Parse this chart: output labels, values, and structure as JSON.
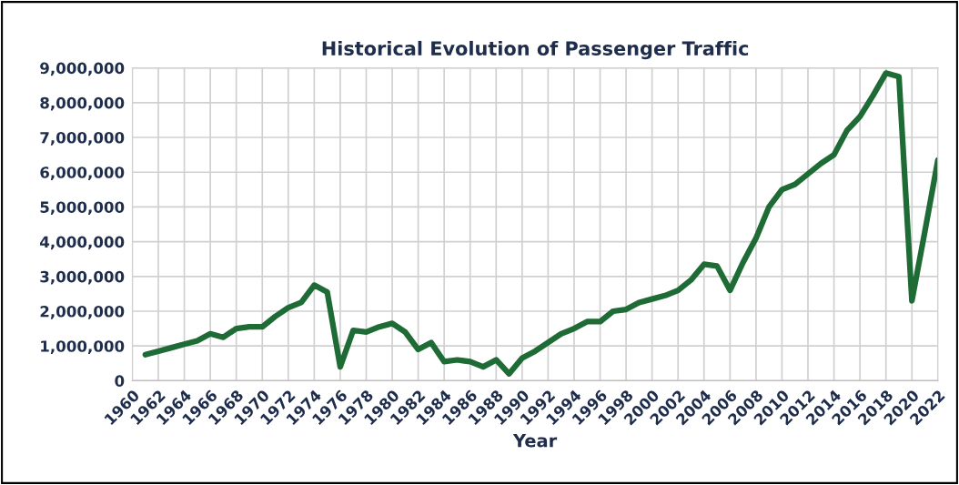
{
  "chart_data": {
    "type": "line",
    "title": "Historical Evolution of Passenger Traffic",
    "xlabel": "Year",
    "x": [
      1961,
      1962,
      1963,
      1964,
      1965,
      1966,
      1967,
      1968,
      1969,
      1970,
      1971,
      1972,
      1973,
      1974,
      1975,
      1976,
      1977,
      1978,
      1979,
      1980,
      1981,
      1982,
      1983,
      1984,
      1985,
      1986,
      1987,
      1988,
      1989,
      1990,
      1991,
      1992,
      1993,
      1994,
      1995,
      1996,
      1997,
      1998,
      1999,
      2000,
      2001,
      2002,
      2003,
      2004,
      2005,
      2006,
      2007,
      2008,
      2009,
      2010,
      2011,
      2012,
      2013,
      2014,
      2015,
      2016,
      2017,
      2018,
      2019,
      2020,
      2021,
      2022
    ],
    "series": [
      {
        "color": "#1e6b35",
        "values": [
          750000,
          850000,
          950000,
          1050000,
          1150000,
          1350000,
          1250000,
          1500000,
          1550000,
          1550000,
          1850000,
          2100000,
          2250000,
          2750000,
          2550000,
          400000,
          1450000,
          1400000,
          1550000,
          1650000,
          1400000,
          900000,
          1100000,
          550000,
          600000,
          550000,
          400000,
          600000,
          200000,
          650000,
          850000,
          1100000,
          1350000,
          1500000,
          1700000,
          1700000,
          2000000,
          2050000,
          2250000,
          2350000,
          2450000,
          2600000,
          2900000,
          3350000,
          3300000,
          2600000,
          3400000,
          4100000,
          5000000,
          5500000,
          5650000,
          5950000,
          6250000,
          6500000,
          7200000,
          7600000,
          8200000,
          8850000,
          8750000,
          2300000,
          4300000,
          6350000
        ]
      }
    ],
    "xlim": [
      1960,
      2022
    ],
    "xticks": [
      1960,
      1962,
      1964,
      1966,
      1968,
      1970,
      1972,
      1974,
      1976,
      1978,
      1980,
      1982,
      1984,
      1986,
      1988,
      1990,
      1992,
      1994,
      1996,
      1998,
      2000,
      2002,
      2004,
      2006,
      2008,
      2010,
      2012,
      2014,
      2016,
      2018,
      2020,
      2022
    ],
    "ylim": [
      0,
      9000000
    ],
    "yticks": [
      {
        "value": 0,
        "label": "0"
      },
      {
        "value": 1000000,
        "label": "1,000,000"
      },
      {
        "value": 2000000,
        "label": "2,000,000"
      },
      {
        "value": 3000000,
        "label": "3,000,000"
      },
      {
        "value": 4000000,
        "label": "4,000,000"
      },
      {
        "value": 5000000,
        "label": "5,000,000"
      },
      {
        "value": 6000000,
        "label": "6,000,000"
      },
      {
        "value": 7000000,
        "label": "7,000,000"
      },
      {
        "value": 8000000,
        "label": "8,000,000"
      },
      {
        "value": 9000000,
        "label": "9,000,000"
      }
    ],
    "grid": true,
    "marker": "none",
    "line_style": "solid"
  }
}
